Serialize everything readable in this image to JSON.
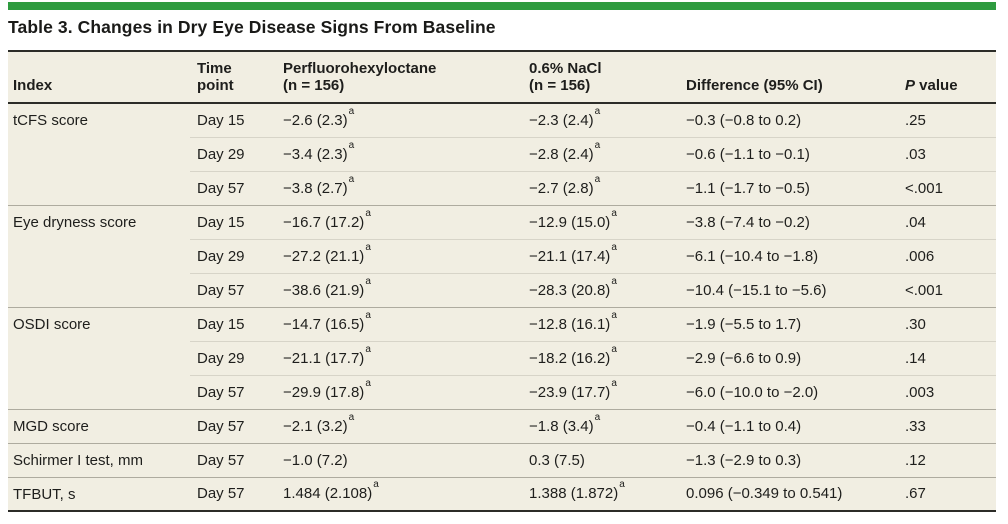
{
  "page": {
    "accent_color": "#2e9b3f",
    "table_background": "#f1eee2"
  },
  "table": {
    "title": "Table 3. Changes in Dry Eye Disease Signs From Baseline",
    "footnote_marker": "a",
    "columns": {
      "index": {
        "line1": "Index"
      },
      "time": {
        "line1": "Time",
        "line2": "point"
      },
      "pfho": {
        "line1": "Perfluorohexyloctane",
        "line2": "(n = 156)"
      },
      "nacl": {
        "line1": "0.6% NaCl",
        "line2": "(n = 156)"
      },
      "diff": {
        "line1": "Difference (95% CI)"
      },
      "p": {
        "line1": "P value"
      }
    },
    "groups": [
      {
        "index": "tCFS score",
        "rows": [
          {
            "time": "Day 15",
            "pfho": "−2.6 (2.3)",
            "pfho_sup": true,
            "nacl": "−2.3 (2.4)",
            "nacl_sup": true,
            "diff": "−0.3 (−0.8 to 0.2)",
            "p": ".25"
          },
          {
            "time": "Day 29",
            "pfho": "−3.4 (2.3)",
            "pfho_sup": true,
            "nacl": "−2.8 (2.4)",
            "nacl_sup": true,
            "diff": "−0.6 (−1.1 to −0.1)",
            "p": ".03"
          },
          {
            "time": "Day 57",
            "pfho": "−3.8 (2.7)",
            "pfho_sup": true,
            "nacl": "−2.7 (2.8)",
            "nacl_sup": true,
            "diff": "−1.1 (−1.7 to −0.5)",
            "p": "<.001"
          }
        ]
      },
      {
        "index": "Eye dryness score",
        "rows": [
          {
            "time": "Day 15",
            "pfho": "−16.7 (17.2)",
            "pfho_sup": true,
            "nacl": "−12.9 (15.0)",
            "nacl_sup": true,
            "diff": "−3.8 (−7.4 to −0.2)",
            "p": ".04"
          },
          {
            "time": "Day 29",
            "pfho": "−27.2 (21.1)",
            "pfho_sup": true,
            "nacl": "−21.1 (17.4)",
            "nacl_sup": true,
            "diff": "−6.1 (−10.4 to −1.8)",
            "p": ".006"
          },
          {
            "time": "Day 57",
            "pfho": "−38.6 (21.9)",
            "pfho_sup": true,
            "nacl": "−28.3 (20.8)",
            "nacl_sup": true,
            "diff": "−10.4 (−15.1 to −5.6)",
            "p": "<.001"
          }
        ]
      },
      {
        "index": "OSDI score",
        "rows": [
          {
            "time": "Day 15",
            "pfho": "−14.7 (16.5)",
            "pfho_sup": true,
            "nacl": "−12.8 (16.1)",
            "nacl_sup": true,
            "diff": "−1.9 (−5.5 to 1.7)",
            "p": ".30"
          },
          {
            "time": "Day 29",
            "pfho": "−21.1 (17.7)",
            "pfho_sup": true,
            "nacl": "−18.2 (16.2)",
            "nacl_sup": true,
            "diff": "−2.9 (−6.6 to 0.9)",
            "p": ".14"
          },
          {
            "time": "Day 57",
            "pfho": "−29.9 (17.8)",
            "pfho_sup": true,
            "nacl": "−23.9 (17.7)",
            "nacl_sup": true,
            "diff": "−6.0 (−10.0 to −2.0)",
            "p": ".003"
          }
        ]
      },
      {
        "index": "MGD score",
        "rows": [
          {
            "time": "Day 57",
            "pfho": "−2.1 (3.2)",
            "pfho_sup": true,
            "nacl": "−1.8 (3.4)",
            "nacl_sup": true,
            "diff": "−0.4 (−1.1 to 0.4)",
            "p": ".33"
          }
        ]
      },
      {
        "index": "Schirmer I test, mm",
        "rows": [
          {
            "time": "Day 57",
            "pfho": "−1.0 (7.2)",
            "pfho_sup": false,
            "nacl": "0.3 (7.5)",
            "nacl_sup": false,
            "diff": "−1.3 (−2.9 to 0.3)",
            "p": ".12"
          }
        ]
      },
      {
        "index": "TFBUT, s",
        "rows": [
          {
            "time": "Day 57",
            "pfho": "1.484 (2.108)",
            "pfho_sup": true,
            "nacl": "1.388 (1.872)",
            "nacl_sup": true,
            "diff": "0.096 (−0.349 to 0.541)",
            "p": ".67"
          }
        ]
      }
    ]
  }
}
